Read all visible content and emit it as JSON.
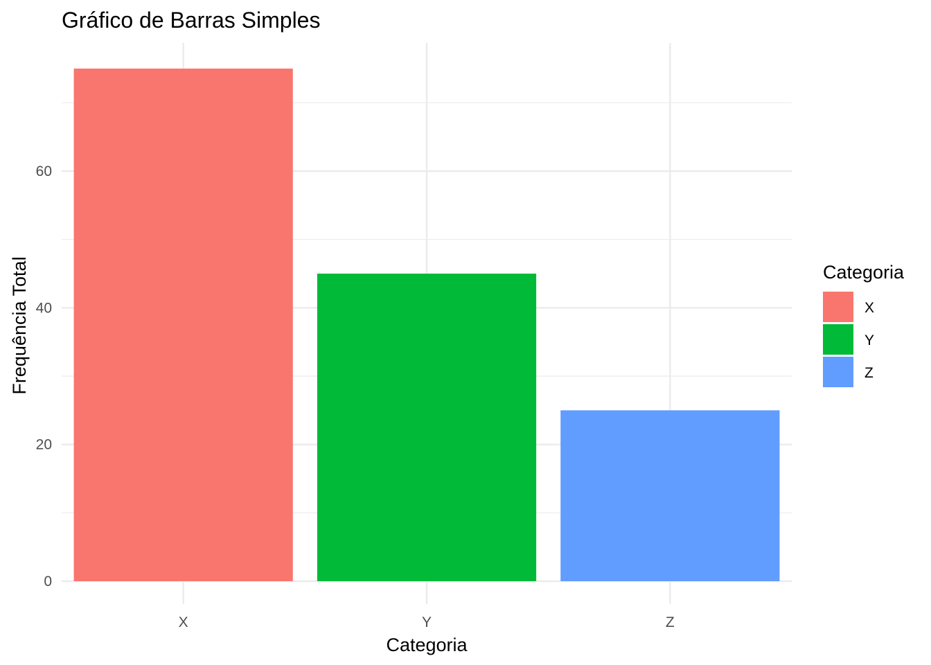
{
  "chart_data": {
    "type": "bar",
    "title": "Gráfico de Barras Simples",
    "xlabel": "Categoria",
    "ylabel": "Frequência Total",
    "categories": [
      "X",
      "Y",
      "Z"
    ],
    "values": [
      75,
      45,
      25
    ],
    "colors": [
      "#F8766D",
      "#00BA38",
      "#619CFF"
    ],
    "ylim": [
      0,
      75
    ],
    "yticks": [
      0,
      20,
      40,
      60
    ],
    "grid": true,
    "legend": {
      "title": "Categoria",
      "placement": "right",
      "entries": [
        "X",
        "Y",
        "Z"
      ]
    }
  }
}
